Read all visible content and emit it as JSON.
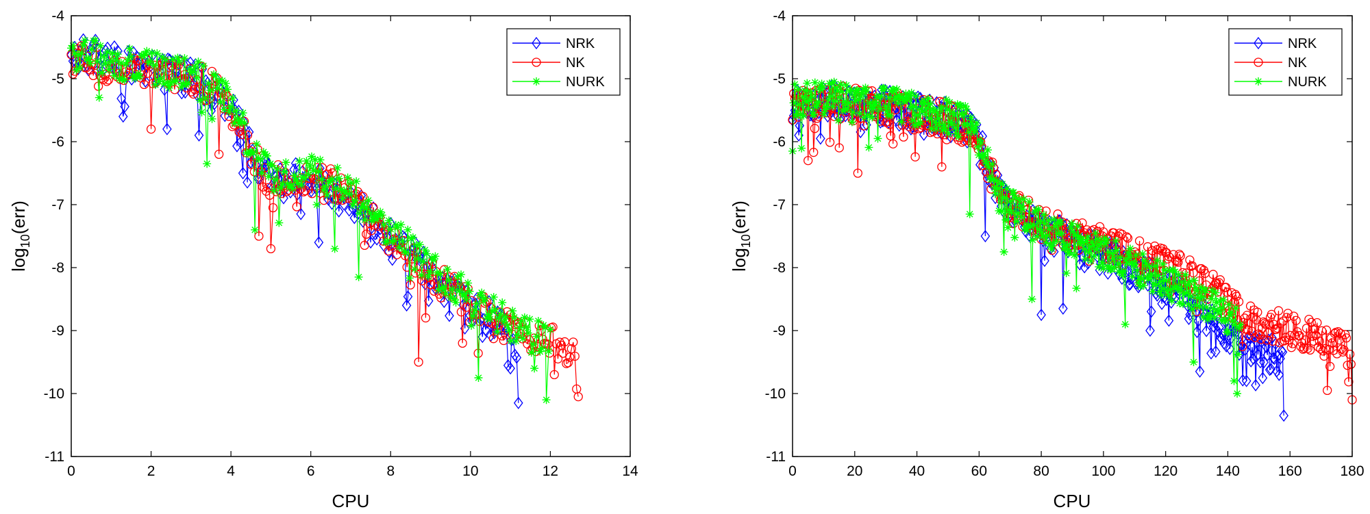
{
  "chart_data": [
    {
      "type": "line",
      "id": "left",
      "xlabel": "CPU",
      "ylabel_base": "log",
      "ylabel_sub": "10",
      "ylabel_rest": "(err)",
      "xlim": [
        0,
        14
      ],
      "ylim": [
        -11,
        -4
      ],
      "xticks": [
        0,
        2,
        4,
        6,
        8,
        10,
        12,
        14
      ],
      "yticks": [
        -4,
        -5,
        -6,
        -7,
        -8,
        -9,
        -10,
        -11
      ],
      "legend_position": "top-right",
      "series": [
        {
          "name": "NRK",
          "color": "#0000ff",
          "marker": "diamond",
          "n": 260,
          "x_end": 11.2,
          "trend_x": [
            0,
            0.5,
            1,
            2,
            3,
            3.7,
            4.2,
            4.6,
            5,
            5.5,
            6,
            6.5,
            7,
            8,
            9,
            10,
            11,
            11.2
          ],
          "trend_y": [
            -4.7,
            -4.6,
            -4.7,
            -4.9,
            -5.0,
            -5.2,
            -5.7,
            -6.3,
            -6.6,
            -6.6,
            -6.6,
            -6.7,
            -6.9,
            -7.5,
            -8.1,
            -8.6,
            -9.0,
            -9.2
          ],
          "dips": [
            [
              1.3,
              -5.6
            ],
            [
              2.4,
              -5.8
            ],
            [
              3.2,
              -5.9
            ],
            [
              4.3,
              -6.5
            ],
            [
              6.2,
              -7.6
            ],
            [
              7.5,
              -7.6
            ],
            [
              8.4,
              -8.6
            ],
            [
              10.3,
              -9.1
            ],
            [
              11.0,
              -9.6
            ],
            [
              11.2,
              -10.15
            ]
          ]
        },
        {
          "name": "NK",
          "color": "#ff0000",
          "marker": "circle",
          "n": 300,
          "x_end": 12.7,
          "trend_x": [
            0,
            0.5,
            1,
            2,
            3,
            3.7,
            4.2,
            4.6,
            5,
            5.5,
            6,
            6.5,
            7,
            8,
            9,
            10,
            11,
            12,
            12.7
          ],
          "trend_y": [
            -4.7,
            -4.7,
            -4.8,
            -4.9,
            -5.0,
            -5.2,
            -5.7,
            -6.3,
            -6.6,
            -6.6,
            -6.6,
            -6.7,
            -6.9,
            -7.5,
            -8.1,
            -8.6,
            -9.0,
            -9.2,
            -9.3
          ],
          "dips": [
            [
              2.0,
              -5.8
            ],
            [
              3.7,
              -6.2
            ],
            [
              4.7,
              -7.5
            ],
            [
              5.0,
              -7.7
            ],
            [
              8.7,
              -9.5
            ],
            [
              9.8,
              -9.2
            ],
            [
              12.1,
              -9.7
            ],
            [
              12.7,
              -10.05
            ]
          ]
        },
        {
          "name": "NURK",
          "color": "#00ff00",
          "marker": "asterisk",
          "n": 280,
          "x_end": 12.0,
          "trend_x": [
            0,
            0.5,
            1,
            2,
            3,
            3.7,
            4.2,
            4.6,
            5,
            5.5,
            6,
            6.5,
            7,
            8,
            9,
            10,
            11,
            12
          ],
          "trend_y": [
            -4.6,
            -4.6,
            -4.7,
            -4.85,
            -4.95,
            -5.15,
            -5.65,
            -6.25,
            -6.55,
            -6.5,
            -6.5,
            -6.6,
            -6.8,
            -7.4,
            -8.0,
            -8.5,
            -8.9,
            -9.15
          ],
          "dips": [
            [
              0.7,
              -5.3
            ],
            [
              3.4,
              -6.35
            ],
            [
              4.6,
              -7.4
            ],
            [
              6.6,
              -7.7
            ],
            [
              7.2,
              -8.15
            ],
            [
              10.2,
              -9.75
            ],
            [
              11.6,
              -9.6
            ],
            [
              11.9,
              -10.1
            ]
          ]
        }
      ]
    },
    {
      "type": "line",
      "id": "right",
      "xlabel": "CPU",
      "ylabel_base": "log",
      "ylabel_sub": "10",
      "ylabel_rest": "(err)",
      "xlim": [
        0,
        180
      ],
      "ylim": [
        -11,
        -4
      ],
      "xticks": [
        0,
        20,
        40,
        60,
        80,
        100,
        120,
        140,
        160,
        180
      ],
      "yticks": [
        -4,
        -5,
        -6,
        -7,
        -8,
        -9,
        -10,
        -11
      ],
      "legend_position": "top-right",
      "series": [
        {
          "name": "NRK",
          "color": "#0000ff",
          "marker": "diamond",
          "n": 420,
          "x_end": 158,
          "trend_x": [
            0,
            10,
            30,
            50,
            58,
            63,
            68,
            80,
            100,
            120,
            135,
            145,
            155,
            158
          ],
          "trend_y": [
            -5.4,
            -5.35,
            -5.45,
            -5.65,
            -5.8,
            -6.4,
            -7.0,
            -7.4,
            -7.8,
            -8.3,
            -8.8,
            -9.2,
            -9.4,
            -9.5
          ],
          "dips": [
            [
              2,
              -5.9
            ],
            [
              9,
              -5.95
            ],
            [
              62,
              -7.5
            ],
            [
              80,
              -8.75
            ],
            [
              87,
              -8.65
            ],
            [
              115,
              -9.0
            ],
            [
              131,
              -9.65
            ],
            [
              146,
              -9.8
            ],
            [
              158,
              -10.35
            ]
          ]
        },
        {
          "name": "NK",
          "color": "#ff0000",
          "marker": "circle",
          "n": 480,
          "x_end": 180,
          "trend_x": [
            0,
            10,
            30,
            50,
            58,
            63,
            68,
            80,
            100,
            120,
            135,
            145,
            160,
            180
          ],
          "trend_y": [
            -5.4,
            -5.35,
            -5.45,
            -5.65,
            -5.8,
            -6.4,
            -7.0,
            -7.3,
            -7.6,
            -7.95,
            -8.3,
            -8.8,
            -9.0,
            -9.3
          ],
          "dips": [
            [
              5,
              -6.3
            ],
            [
              21,
              -6.5
            ],
            [
              48,
              -6.4
            ],
            [
              72,
              -7.1
            ],
            [
              130,
              -8.7
            ],
            [
              172,
              -9.95
            ],
            [
              180,
              -10.1
            ]
          ]
        },
        {
          "name": "NURK",
          "color": "#00ff00",
          "marker": "asterisk",
          "n": 400,
          "x_end": 144,
          "trend_x": [
            0,
            10,
            30,
            50,
            58,
            63,
            68,
            80,
            100,
            120,
            135,
            144
          ],
          "trend_y": [
            -5.35,
            -5.3,
            -5.4,
            -5.6,
            -5.75,
            -6.35,
            -6.95,
            -7.35,
            -7.75,
            -8.2,
            -8.6,
            -8.9
          ],
          "dips": [
            [
              0,
              -6.15
            ],
            [
              57,
              -7.15
            ],
            [
              68,
              -7.75
            ],
            [
              77,
              -8.5
            ],
            [
              107,
              -8.9
            ],
            [
              129,
              -9.5
            ],
            [
              142,
              -9.8
            ],
            [
              143,
              -10.0
            ]
          ]
        }
      ]
    }
  ]
}
